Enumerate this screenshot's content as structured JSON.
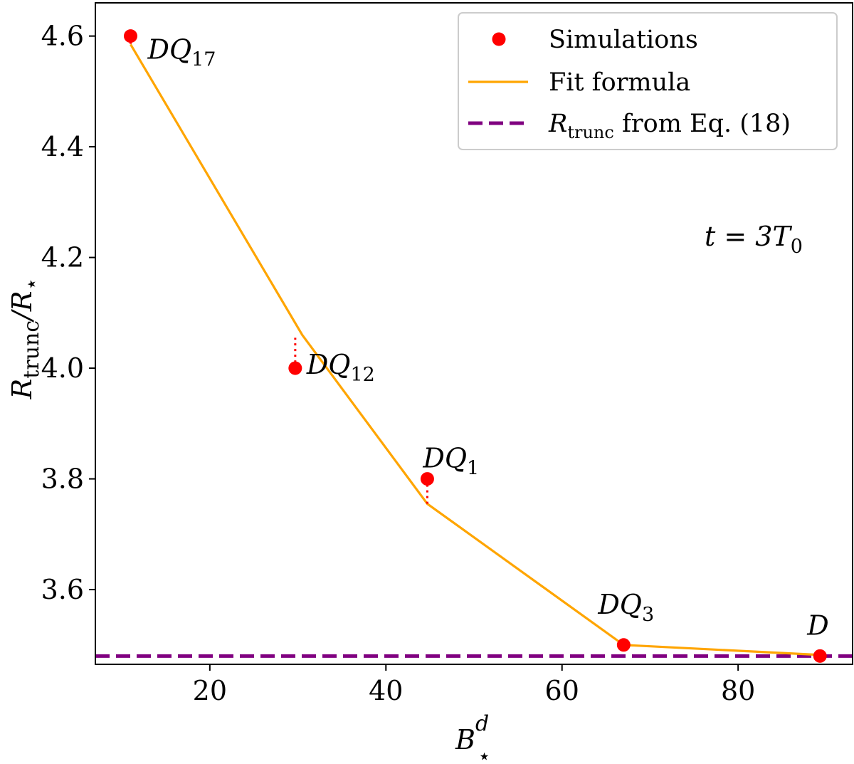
{
  "chart_data": {
    "type": "line",
    "xlabel_base": "B",
    "xlabel_sup": "d",
    "xlabel_sub": "⋆",
    "ylabel_base": "R",
    "ylabel_sub": "trunc",
    "ylabel_rest": "/R",
    "ylabel_rest_sub": "⋆",
    "annotation_text": "t = 3T",
    "annotation_sub": "0",
    "xlim": [
      7,
      93
    ],
    "ylim": [
      3.465,
      4.66
    ],
    "xticks": [
      20,
      40,
      60,
      80
    ],
    "yticks": [
      3.6,
      3.8,
      4.0,
      4.2,
      4.4,
      4.6
    ],
    "xtick_labels": [
      "20",
      "40",
      "60",
      "80"
    ],
    "ytick_labels": [
      "3.6",
      "3.8",
      "4.0",
      "4.2",
      "4.4",
      "4.6"
    ],
    "simulations": {
      "name": "Simulations",
      "color": "#ff0000",
      "points": [
        {
          "x": 11,
          "y": 4.6,
          "label": "DQ",
          "sub": "17"
        },
        {
          "x": 29.7,
          "y": 4.0,
          "label": "DQ",
          "sub": "12"
        },
        {
          "x": 44.7,
          "y": 3.8,
          "label": "DQ",
          "sub": "1"
        },
        {
          "x": 67,
          "y": 3.5,
          "label": "DQ",
          "sub": "3"
        },
        {
          "x": 89.3,
          "y": 3.48,
          "label": "D",
          "sub": ""
        }
      ]
    },
    "fit": {
      "name": "Fit formula",
      "color": "#ffa500",
      "x": [
        11,
        30.5,
        44.7,
        67,
        89.3
      ],
      "y": [
        4.585,
        4.06,
        3.755,
        3.5,
        3.482
      ]
    },
    "reference": {
      "name_base": "R",
      "name_sub": "trunc",
      "name_rest": " from Eq. (18)",
      "color": "#800080",
      "y": 3.48
    }
  }
}
